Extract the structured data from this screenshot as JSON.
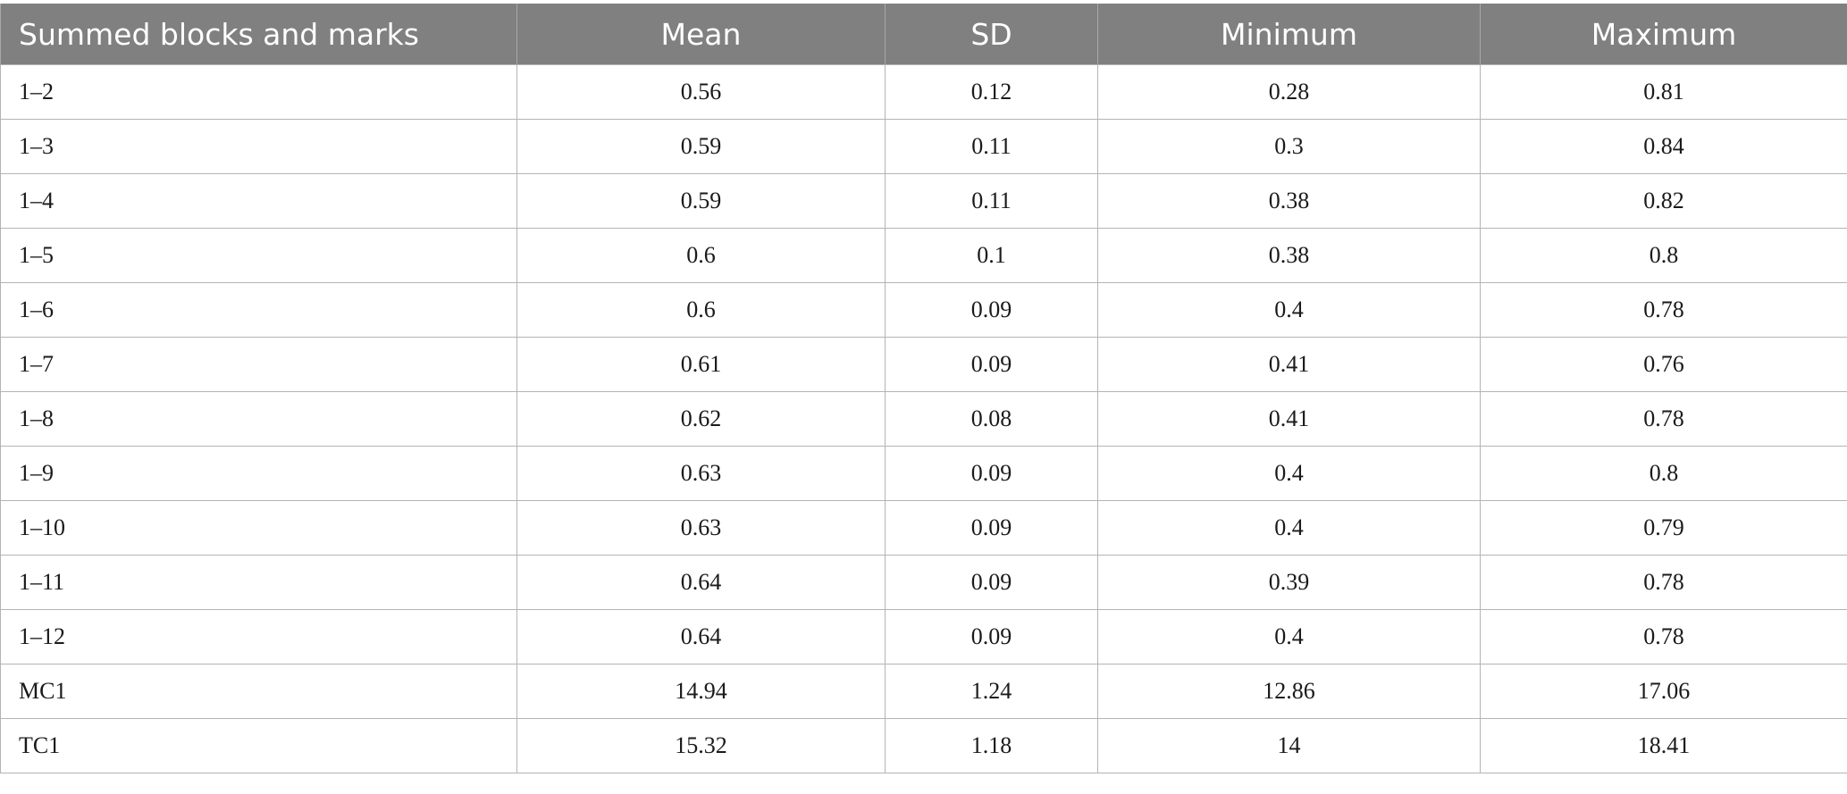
{
  "table": {
    "headers": [
      "Summed blocks and marks",
      "Mean",
      "SD",
      "Minimum",
      "Maximum"
    ],
    "rows": [
      [
        "1–2",
        "0.56",
        "0.12",
        "0.28",
        "0.81"
      ],
      [
        "1–3",
        "0.59",
        "0.11",
        "0.3",
        "0.84"
      ],
      [
        "1–4",
        "0.59",
        "0.11",
        "0.38",
        "0.82"
      ],
      [
        "1–5",
        "0.6",
        "0.1",
        "0.38",
        "0.8"
      ],
      [
        "1–6",
        "0.6",
        "0.09",
        "0.4",
        "0.78"
      ],
      [
        "1–7",
        "0.61",
        "0.09",
        "0.41",
        "0.76"
      ],
      [
        "1–8",
        "0.62",
        "0.08",
        "0.41",
        "0.78"
      ],
      [
        "1–9",
        "0.63",
        "0.09",
        "0.4",
        "0.8"
      ],
      [
        "1–10",
        "0.63",
        "0.09",
        "0.4",
        "0.79"
      ],
      [
        "1–11",
        "0.64",
        "0.09",
        "0.39",
        "0.78"
      ],
      [
        "1–12",
        "0.64",
        "0.09",
        "0.4",
        "0.78"
      ],
      [
        "MC1",
        "14.94",
        "1.24",
        "12.86",
        "17.06"
      ],
      [
        "TC1",
        "15.32",
        "1.18",
        "14",
        "18.41"
      ]
    ]
  }
}
